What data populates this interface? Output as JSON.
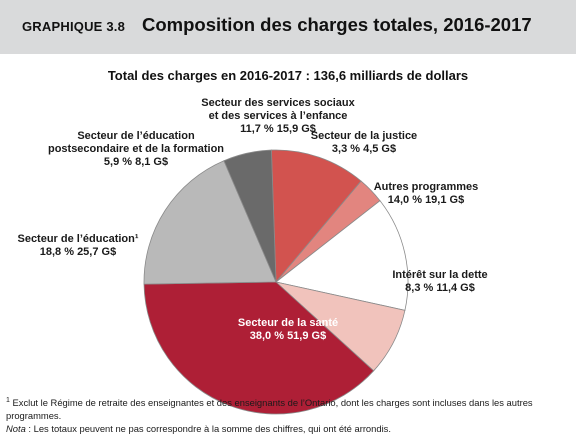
{
  "header": {
    "graph_label": "GRAPHIQUE 3.8",
    "title": "Composition des charges totales, 2016-2017"
  },
  "chart_data": {
    "type": "pie",
    "title": "Composition des charges totales, 2016-2017",
    "subtitle": "Total des charges en 2016-2017 :  136,6 milliards de dollars",
    "total_label": "136,6 milliards de dollars",
    "slices": [
      {
        "label_lines": [
          "Secteur des services sociaux",
          "et des services à l’enfance"
        ],
        "value_line": "11,7 %  15,9 G$",
        "percent": 11.7,
        "amount": 15.9,
        "color": "#d2534f"
      },
      {
        "label_lines": [
          "Secteur de la justice"
        ],
        "value_line": "3,3 %  4,5 G$",
        "percent": 3.3,
        "amount": 4.5,
        "color": "#e2857f"
      },
      {
        "label_lines": [
          "Autres programmes"
        ],
        "value_line": "14,0 %  19,1 G$",
        "percent": 14.0,
        "amount": 19.1,
        "color": "#ffffff"
      },
      {
        "label_lines": [
          "Intérêt sur la dette"
        ],
        "value_line": "8,3 %  11,4 G$",
        "percent": 8.3,
        "amount": 11.4,
        "color": "#f1c3bc"
      },
      {
        "label_lines": [
          "Secteur de la santé"
        ],
        "value_line": "38,0 %  51,9 G$",
        "percent": 38.0,
        "amount": 51.9,
        "color": "#ae1f36"
      },
      {
        "label_lines": [
          "Secteur de l’éducation¹"
        ],
        "value_line": "18,8 %  25,7 G$",
        "percent": 18.8,
        "amount": 25.7,
        "color": "#b9b9b9"
      },
      {
        "label_lines": [
          "Secteur de l’éducation",
          "postsecondaire et de la formation"
        ],
        "value_line": "5,9 %  8,1 G$",
        "percent": 5.9,
        "amount": 8.1,
        "color": "#6a6a6a"
      }
    ]
  },
  "notes": {
    "footnote_marker": "1",
    "footnote": " Exclut le Régime de retraite des enseignantes et des enseignants de l’Ontario, dont les charges sont incluses dans les autres programmes.",
    "note_label": "Nota",
    "note_text": " : Les totaux peuvent ne pas correspondre à la somme des chiffres, qui ont été arrondis."
  }
}
